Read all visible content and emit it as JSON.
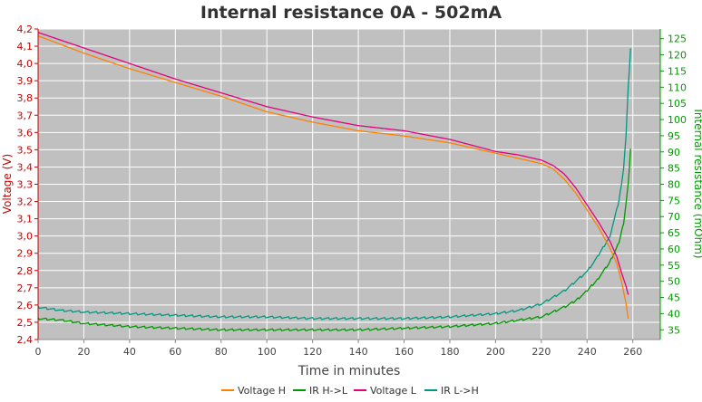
{
  "chart_data": {
    "type": "line",
    "title": "Internal resistance  0A - 502mA",
    "xlabel": "Time in minutes",
    "ylabel_left": "Voltage (V)",
    "ylabel_right": "Internal resistance (mOhm)",
    "xlim": [
      0,
      272
    ],
    "ylim_left": [
      2.4,
      4.2
    ],
    "ylim_right": [
      32,
      128
    ],
    "x_ticks": [
      0,
      20,
      40,
      60,
      80,
      100,
      120,
      140,
      160,
      180,
      200,
      220,
      240,
      260
    ],
    "y_left_ticks": [
      "2,4",
      "2,5",
      "2,6",
      "2,7",
      "2,8",
      "2,9",
      "3,0",
      "3,1",
      "3,2",
      "3,3",
      "3,4",
      "3,5",
      "3,6",
      "3,7",
      "3,8",
      "3,9",
      "4,0",
      "4,1",
      "4,2"
    ],
    "y_right_ticks": [
      35,
      40,
      45,
      50,
      55,
      60,
      65,
      70,
      75,
      80,
      85,
      90,
      95,
      100,
      105,
      110,
      115,
      120,
      125
    ],
    "grid": true,
    "legend_position": "bottom",
    "colors": {
      "plot_bg": "#c0c0c0",
      "grid": "#ffffff",
      "left_axis": "#cc0000",
      "right_axis": "#009900",
      "voltage_h": "#ff8000",
      "ir_hl": "#009900",
      "voltage_l": "#e6007e",
      "ir_lh": "#009980"
    },
    "series": [
      {
        "name": "Voltage H",
        "axis": "left",
        "x": [
          0,
          20,
          40,
          60,
          80,
          100,
          120,
          140,
          160,
          180,
          200,
          210,
          220,
          225,
          230,
          235,
          240,
          245,
          250,
          253,
          255,
          257,
          258
        ],
        "values": [
          4.16,
          4.06,
          3.97,
          3.89,
          3.81,
          3.72,
          3.66,
          3.61,
          3.58,
          3.54,
          3.48,
          3.45,
          3.42,
          3.39,
          3.33,
          3.25,
          3.15,
          3.05,
          2.93,
          2.84,
          2.74,
          2.61,
          2.52
        ]
      },
      {
        "name": "IR H->L",
        "axis": "right",
        "x": [
          0,
          10,
          20,
          40,
          60,
          80,
          100,
          120,
          140,
          160,
          180,
          200,
          210,
          220,
          230,
          235,
          240,
          245,
          250,
          254,
          256,
          258,
          259
        ],
        "values": [
          38.5,
          38,
          37,
          36,
          35.5,
          35,
          35,
          35,
          35,
          35.5,
          36,
          37,
          38,
          39,
          42,
          44,
          47,
          51,
          56,
          62,
          68,
          80,
          91
        ]
      },
      {
        "name": "Voltage L",
        "axis": "left",
        "x": [
          0,
          20,
          40,
          60,
          80,
          100,
          120,
          140,
          160,
          180,
          200,
          210,
          220,
          225,
          230,
          235,
          240,
          245,
          250,
          253,
          255,
          257,
          258
        ],
        "values": [
          4.18,
          4.09,
          4.0,
          3.91,
          3.83,
          3.75,
          3.69,
          3.64,
          3.61,
          3.56,
          3.49,
          3.47,
          3.44,
          3.41,
          3.36,
          3.28,
          3.18,
          3.08,
          2.97,
          2.88,
          2.79,
          2.71,
          2.66
        ]
      },
      {
        "name": "IR L->H",
        "axis": "right",
        "x": [
          0,
          10,
          20,
          40,
          60,
          80,
          100,
          120,
          140,
          160,
          180,
          200,
          210,
          220,
          230,
          240,
          245,
          250,
          254,
          256,
          257,
          258,
          259
        ],
        "values": [
          42,
          41,
          40.5,
          40,
          39.5,
          39,
          39,
          38.5,
          38.5,
          38.5,
          39,
          40,
          41,
          43,
          47,
          53,
          58,
          64,
          75,
          85,
          95,
          110,
          122
        ]
      }
    ]
  }
}
